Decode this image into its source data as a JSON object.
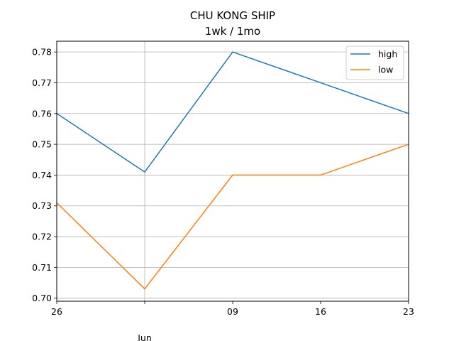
{
  "chart_data": {
    "type": "line",
    "title": "CHU KONG SHIP",
    "subtitle": "1wk / 1mo",
    "x": [
      "26",
      "Jun",
      "09",
      "16",
      "23"
    ],
    "x_tick_labels": [
      "26",
      "",
      "09",
      "16",
      "23"
    ],
    "x_minor_label": "Jun",
    "series": [
      {
        "name": "high",
        "color": "#1f77b4",
        "values": [
          0.76,
          0.741,
          0.78,
          0.77,
          0.76
        ]
      },
      {
        "name": "low",
        "color": "#ff7f0e",
        "values": [
          0.731,
          0.703,
          0.74,
          0.74,
          0.75
        ]
      }
    ],
    "ylim": [
      0.699,
      0.7835
    ],
    "y_ticks": [
      "0.70",
      "0.71",
      "0.72",
      "0.73",
      "0.74",
      "0.75",
      "0.76",
      "0.77",
      "0.78"
    ],
    "xlabel": "",
    "ylabel": "",
    "grid": true,
    "legend_position": "upper right"
  }
}
